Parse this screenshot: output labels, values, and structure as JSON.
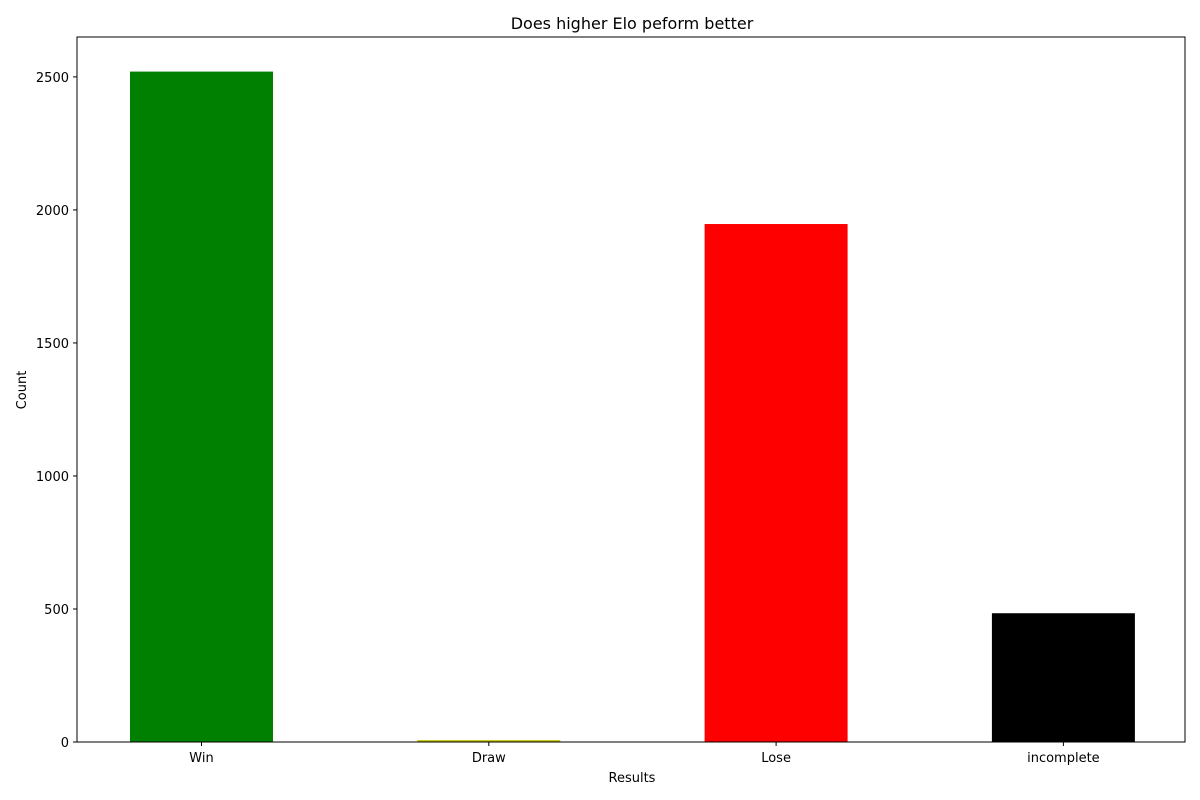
{
  "chart_data": {
    "type": "bar",
    "title": "Does higher Elo peform better",
    "xlabel": "Results",
    "ylabel": "Count",
    "categories": [
      "Win",
      "Draw",
      "Lose",
      "incomplete"
    ],
    "values": [
      2520,
      7,
      1947,
      484
    ],
    "colors": [
      "#008000",
      "#bfbf00",
      "#ff0000",
      "#000000"
    ],
    "ylim": [
      0,
      2650
    ],
    "yticks": [
      0,
      500,
      1000,
      1500,
      2000,
      2500
    ],
    "grid": false,
    "legend": "none"
  }
}
